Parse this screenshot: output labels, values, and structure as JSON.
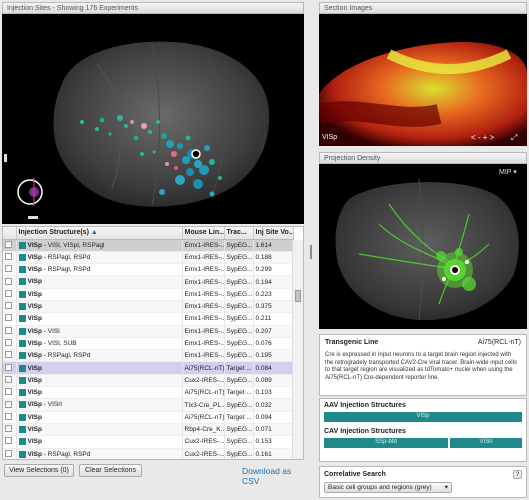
{
  "viewer": {
    "title": "Injection Sites - Showing 176 Experiments"
  },
  "table": {
    "columns": [
      "Injection Structure(s)",
      "Mouse Lin...",
      "Trac...",
      "Inj Site Vo..."
    ],
    "rows": [
      {
        "primary": "VISp",
        "rest": " - VISl, VISpl, RSPagl",
        "line": "Emx1-IRES-...",
        "tracer": "SypEG...",
        "vol": "1.614"
      },
      {
        "primary": "VISp",
        "rest": " - RSPagl, RSPd",
        "line": "Emx1-IRES-...",
        "tracer": "SypEG...",
        "vol": "0.188"
      },
      {
        "primary": "VISp",
        "rest": " - RSPagl, RSPd",
        "line": "Emx1-IRES-...",
        "tracer": "SypEG...",
        "vol": "0.299"
      },
      {
        "primary": "VISp",
        "rest": "",
        "line": "Emx1-IRES-...",
        "tracer": "SypEG...",
        "vol": "0.194"
      },
      {
        "primary": "VISp",
        "rest": "",
        "line": "Emx1-IRES-...",
        "tracer": "SypEG...",
        "vol": "0.223"
      },
      {
        "primary": "VISp",
        "rest": "",
        "line": "Emx1-IRES-...",
        "tracer": "SypEG...",
        "vol": "0.375"
      },
      {
        "primary": "VISp",
        "rest": "",
        "line": "Emx1-IRES-...",
        "tracer": "SypEG...",
        "vol": "0.211"
      },
      {
        "primary": "VISp",
        "rest": " - VISl",
        "line": "Emx1-IRES-...",
        "tracer": "SypEG...",
        "vol": "0.207"
      },
      {
        "primary": "VISp",
        "rest": " - VISl, SUB",
        "line": "Emx1-IRES-...",
        "tracer": "SypEG...",
        "vol": "0.076"
      },
      {
        "primary": "VISp",
        "rest": " - RSPagl, RSPd",
        "line": "Emx1-IRES-...",
        "tracer": "SypEG...",
        "vol": "0.195"
      },
      {
        "primary": "VISp",
        "rest": "",
        "line": "Ai75(RCL-nT)",
        "tracer": "Target ...",
        "vol": "0.084"
      },
      {
        "primary": "VISp",
        "rest": "",
        "line": "Cux2-IRES-...",
        "tracer": "SypEG...",
        "vol": "0.089"
      },
      {
        "primary": "VISp",
        "rest": "",
        "line": "Ai75(RCL-nT)",
        "tracer": "Target ...",
        "vol": "0.103"
      },
      {
        "primary": "VISp",
        "rest": " - VISrl",
        "line": "Tlx3-Cre_PL...",
        "tracer": "SypEG...",
        "vol": "0.032"
      },
      {
        "primary": "VISp",
        "rest": "",
        "line": "Ai75(RCL-nT)",
        "tracer": "Target ...",
        "vol": "0.094"
      },
      {
        "primary": "VISp",
        "rest": "",
        "line": "Rbp4-Cre_K...",
        "tracer": "SypEG...",
        "vol": "0.071"
      },
      {
        "primary": "VISp",
        "rest": "",
        "line": "Cux2-IRES-...",
        "tracer": "SypEG...",
        "vol": "0.153"
      },
      {
        "primary": "VISp",
        "rest": " - RSPagl, RSPd",
        "line": "Cux2-IRES-...",
        "tracer": "SypEG...",
        "vol": "0.161"
      }
    ]
  },
  "footer": {
    "view_selections": "View Selections (0)",
    "clear_selections": "Clear Selections",
    "download": "Download as CSV"
  },
  "section_images": {
    "title": "Section Images",
    "label": "VISp",
    "nav": "< - + >"
  },
  "projection": {
    "title": "Projection Density",
    "mode": "MIP"
  },
  "info": {
    "transgenic_label": "Transgenic Line",
    "transgenic_value": "Ai75(RCL-nT)",
    "description": "Cre is expressed in input neurons to a target brain region injected with the retrogradely transported CAV2-Cre viral tracer. Brain-wide input cells to that target region are visualized as tdTomato+ nuclei when using the Ai75(RCL-nT) Cre-dependent reporter line."
  },
  "aav": {
    "title": "AAV Injection Structures",
    "bar": "VISp"
  },
  "cav": {
    "title": "CAV Injection Structures",
    "bar1": "SSp-bfd",
    "bar2": "VISrl"
  },
  "correlative": {
    "title": "Correlative Search",
    "help": "?",
    "select": "Basic cell groups and regions (grey)"
  },
  "colors": {
    "teal": "#1f8a89",
    "link": "#1a6fb8",
    "selected_row": "#d0d0ef"
  }
}
